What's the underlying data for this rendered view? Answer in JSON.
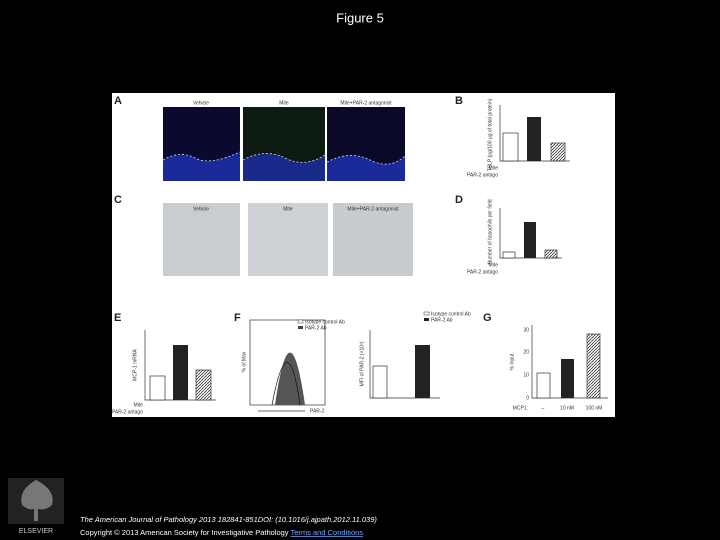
{
  "header": {
    "title": "Figure 5"
  },
  "figure": {
    "A": {
      "label": "A",
      "images": [
        "Vehicle",
        "Mite",
        "Mite+PAR-2 antagonist"
      ]
    },
    "B": {
      "label": "B",
      "ylabel": "TSLP (pg/100 µg of total protein)",
      "rows": [
        "Mite",
        "PAR-2 antago"
      ]
    },
    "C": {
      "label": "C",
      "images": [
        "Vehicle",
        "Mite",
        "Mite+PAR-2 antagonist"
      ]
    },
    "D": {
      "label": "D",
      "ylabel": "Number of basophils per field",
      "rows": [
        "Mite",
        "PAR-2 antago"
      ]
    },
    "E": {
      "label": "E",
      "ylabel": "MCP-1 mRNA",
      "rows": [
        "Mite",
        "PAR-2 antago"
      ]
    },
    "F": {
      "label": "F",
      "legend": [
        "Isotype control Ab",
        "PAR-2 Ab"
      ],
      "ylabel": "% of Max",
      "xlabel": "PAR-2",
      "ylabel2": "MFI of PAR-2 (×10³)"
    },
    "G": {
      "label": "G",
      "ylabel": "% Input",
      "yticks": [
        "0",
        "10",
        "20",
        "30"
      ],
      "xlabel": "MCP1:",
      "categories": [
        "–",
        "10 nM",
        "100 nM"
      ]
    }
  },
  "footer": {
    "citation": "The American Journal of Pathology 2013 182841-851DOI: (10.1016/j.ajpath.2012.11.039)",
    "copyright": "Copyright © 2013 American Society for Investigative Pathology",
    "link": "Terms and Conditions",
    "logo": "ELSEVIER"
  }
}
